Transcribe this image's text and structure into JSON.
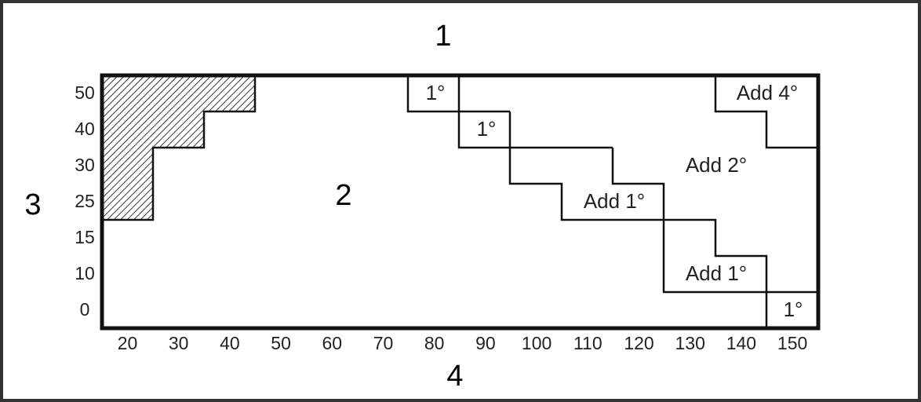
{
  "callouts": [
    "1",
    "2",
    "3",
    "4"
  ],
  "y_axis_labels": [
    50,
    40,
    30,
    25,
    15,
    10,
    0
  ],
  "x_axis_labels": [
    20,
    30,
    40,
    50,
    60,
    70,
    80,
    90,
    100,
    110,
    120,
    130,
    140,
    150
  ],
  "regions": [
    "1°",
    "1°",
    "Add 1°",
    "Add 2°",
    "Add 4°",
    "Add 1°",
    "1°"
  ]
}
